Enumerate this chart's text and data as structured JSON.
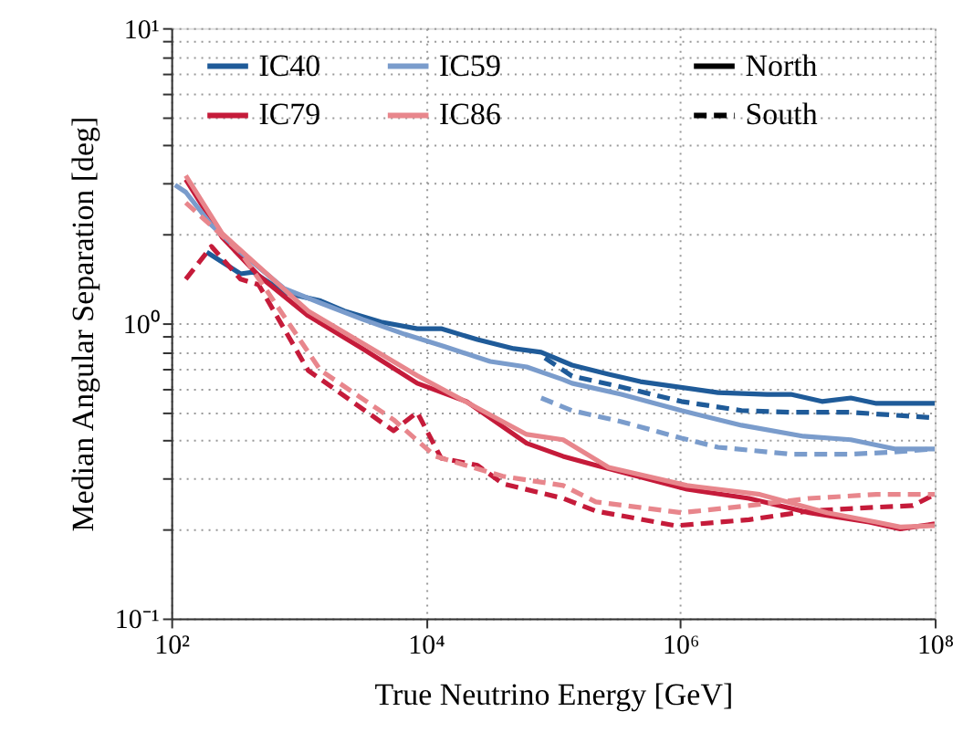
{
  "chart_data": {
    "type": "line",
    "xlabel": "True Neutrino Energy [GeV]",
    "ylabel": "Median Angular Separation [deg]",
    "log": "xy",
    "grid": true,
    "legend": "top",
    "xlim": [
      100,
      100000000
    ],
    "ylim": [
      0.1,
      10
    ],
    "xticks": [
      {
        "value": 100,
        "label": "10²"
      },
      {
        "value": 10000,
        "label": "10⁴"
      },
      {
        "value": 1000000,
        "label": "10⁶"
      },
      {
        "value": 100000000,
        "label": "10⁸"
      }
    ],
    "yticks": [
      {
        "value": 0.1,
        "label": "10⁻¹"
      },
      {
        "value": 0.2,
        "label": null
      },
      {
        "value": 0.3,
        "label": null
      },
      {
        "value": 0.4,
        "label": null
      },
      {
        "value": 0.5,
        "label": null
      },
      {
        "value": 0.6,
        "label": null
      },
      {
        "value": 0.7,
        "label": null
      },
      {
        "value": 0.8,
        "label": null
      },
      {
        "value": 0.9,
        "label": null
      },
      {
        "value": 1,
        "label": "10⁰"
      },
      {
        "value": 2,
        "label": null
      },
      {
        "value": 3,
        "label": null
      },
      {
        "value": 4,
        "label": null
      },
      {
        "value": 5,
        "label": null
      },
      {
        "value": 6,
        "label": null
      },
      {
        "value": 7,
        "label": null
      },
      {
        "value": 8,
        "label": null
      },
      {
        "value": 9,
        "label": null
      },
      {
        "value": 10,
        "label": "10¹"
      }
    ],
    "annotations": [
      "North",
      "South"
    ],
    "series": [
      {
        "name": "IC40",
        "color": "#1f5b99",
        "line_style": "solid",
        "x": [
          190,
          350,
          440,
          773,
          1490,
          2290,
          4440,
          8570,
          13200,
          25500,
          49200,
          80700,
          141000,
          273000,
          486000,
          1980000,
          4820000,
          7400000,
          13000000,
          21900000,
          34800000,
          100000000
        ],
        "values": [
          1.74,
          1.47,
          1.49,
          1.27,
          1.19,
          1.1,
          1.01,
          0.958,
          0.958,
          0.88,
          0.82,
          0.797,
          0.721,
          0.672,
          0.634,
          0.582,
          0.574,
          0.574,
          0.543,
          0.558,
          0.535,
          0.535
        ]
      },
      {
        "color": "#1f5b99",
        "line_style": "dashed",
        "x": [
          86300,
          141000,
          344000,
          1020000,
          3030000,
          7400000,
          21900000,
          100000000
        ],
        "values": [
          0.763,
          0.662,
          0.608,
          0.543,
          0.506,
          0.499,
          0.499,
          0.478
        ]
      },
      {
        "name": "IC79",
        "color": "#c51b3a",
        "line_style": "solid",
        "x": [
          130,
          252,
          486,
          1190,
          3190,
          8570,
          20900,
          62100,
          120000,
          217000,
          1130000,
          3470000,
          10300000,
          30500000,
          53500000,
          100000000
        ],
        "values": [
          3.07,
          1.95,
          1.45,
          1.06,
          0.82,
          0.626,
          0.543,
          0.392,
          0.354,
          0.33,
          0.274,
          0.255,
          0.228,
          0.212,
          0.201,
          0.209
        ]
      },
      {
        "color": "#c51b3a",
        "line_style": "dashed",
        "x": [
          130,
          207,
          350,
          486,
          1190,
          1820,
          5580,
          8570,
          13200,
          25500,
          40300,
          120000,
          217000,
          927000,
          3470000,
          10300000,
          34800000,
          67300000,
          100000000
        ],
        "values": [
          1.41,
          1.82,
          1.41,
          1.35,
          0.692,
          0.608,
          0.432,
          0.499,
          0.349,
          0.33,
          0.286,
          0.255,
          0.231,
          0.206,
          0.216,
          0.231,
          0.238,
          0.241,
          0.263
        ]
      },
      {
        "name": "IC59",
        "color": "#7a9ccc",
        "line_style": "solid",
        "x": [
          107,
          130,
          207,
          350,
          773,
          1490,
          3190,
          6810,
          14300,
          32100,
          62100,
          120000,
          141000,
          344000,
          1020000,
          3030000,
          9310000,
          21900000,
          48400000,
          100000000
        ],
        "values": [
          2.94,
          2.78,
          2.15,
          1.74,
          1.31,
          1.17,
          1.03,
          0.918,
          0.831,
          0.742,
          0.711,
          0.644,
          0.626,
          0.574,
          0.506,
          0.451,
          0.414,
          0.403,
          0.375,
          0.375
        ]
      },
      {
        "color": "#7a9ccc",
        "line_style": "dashed",
        "x": [
          80700,
          141000,
          344000,
          1020000,
          1980000,
          7400000,
          21900000,
          42500000,
          100000000
        ],
        "values": [
          0.558,
          0.506,
          0.464,
          0.408,
          0.38,
          0.36,
          0.36,
          0.365,
          0.375
        ]
      },
      {
        "name": "IC86",
        "color": "#e8868c",
        "line_style": "solid",
        "x": [
          130,
          252,
          1190,
          8570,
          62100,
          120000,
          273000,
          1130000,
          4220000,
          14300000,
          34800000,
          53500000,
          100000000
        ],
        "values": [
          3.16,
          2.01,
          1.1,
          0.664,
          0.42,
          0.403,
          0.325,
          0.282,
          0.263,
          0.228,
          0.212,
          0.204,
          0.206
        ]
      },
      {
        "color": "#e8868c",
        "line_style": "dashed",
        "x": [
          130,
          350,
          614,
          1490,
          5580,
          11900,
          40300,
          120000,
          217000,
          1020000,
          3470000,
          10300000,
          34800000,
          100000000
        ],
        "values": [
          2.56,
          1.74,
          1.22,
          0.692,
          0.471,
          0.354,
          0.303,
          0.282,
          0.248,
          0.228,
          0.241,
          0.255,
          0.263,
          0.263
        ]
      }
    ]
  }
}
